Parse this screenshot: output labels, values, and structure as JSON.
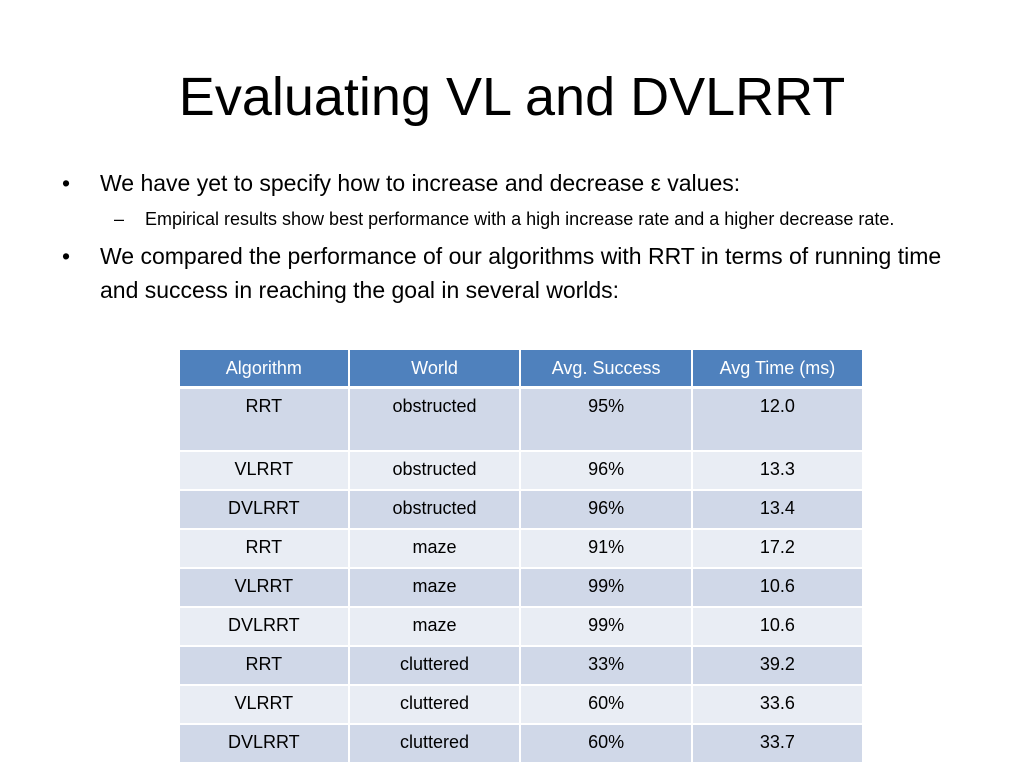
{
  "slide": {
    "title": "Evaluating VL and DVLRRT",
    "bullet_mark": "•",
    "sub_bullet_mark": "–",
    "bullets": [
      "We have yet to specify how to increase and decrease ε values:",
      "We compared the performance of our algorithms with RRT in terms of running time and success in reaching the goal in several worlds:"
    ],
    "sub_bullets": [
      "Empirical results show best performance with a high increase rate and a higher decrease rate."
    ]
  },
  "table": {
    "headers": [
      "Algorithm",
      "World",
      "Avg. Success",
      "Avg Time (ms)"
    ],
    "rows": [
      [
        "RRT",
        "obstructed",
        "95%",
        "12.0"
      ],
      [
        "VLRRT",
        "obstructed",
        "96%",
        "13.3"
      ],
      [
        "DVLRRT",
        "obstructed",
        "96%",
        "13.4"
      ],
      [
        "RRT",
        "maze",
        "91%",
        "17.2"
      ],
      [
        "VLRRT",
        "maze",
        "99%",
        "10.6"
      ],
      [
        "DVLRRT",
        "maze",
        "99%",
        "10.6"
      ],
      [
        "RRT",
        "cluttered",
        "33%",
        "39.2"
      ],
      [
        "VLRRT",
        "cluttered",
        "60%",
        "33.6"
      ],
      [
        "DVLRRT",
        "cluttered",
        "60%",
        "33.7"
      ]
    ]
  },
  "colors": {
    "header_fill": "#4f81bd",
    "row_fill_dark": "#d0d8e8",
    "row_fill_light": "#e9edf4"
  }
}
